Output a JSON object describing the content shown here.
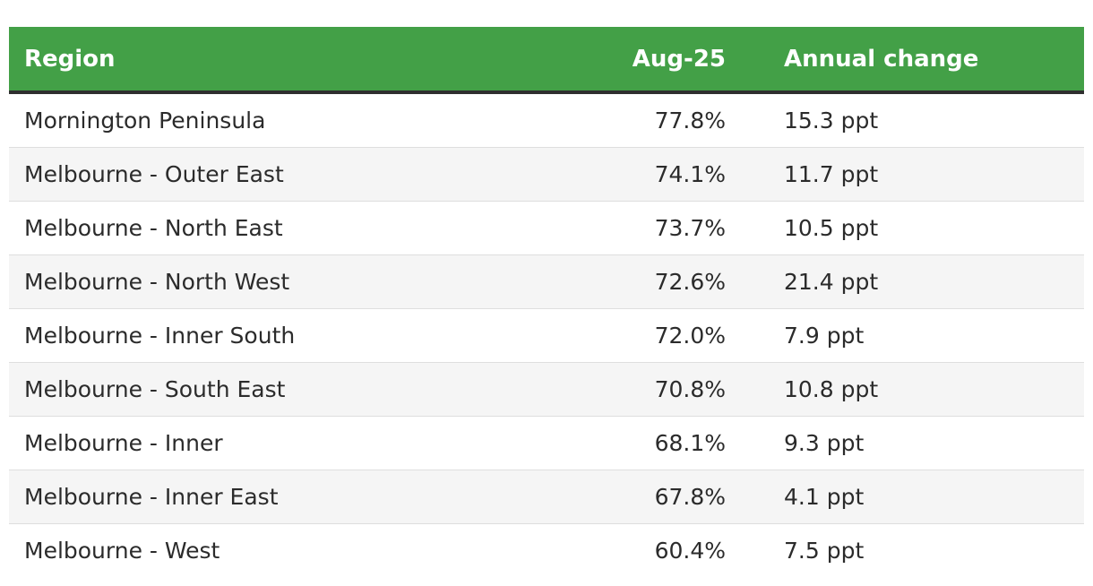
{
  "table": {
    "headers": {
      "region": "Region",
      "value": "Aug-25",
      "change": "Annual change"
    },
    "rows": [
      {
        "region": "Mornington Peninsula",
        "value": "77.8%",
        "change": "15.3 ppt"
      },
      {
        "region": "Melbourne - Outer East",
        "value": "74.1%",
        "change": "11.7 ppt"
      },
      {
        "region": "Melbourne - North East",
        "value": "73.7%",
        "change": "10.5 ppt"
      },
      {
        "region": "Melbourne - North West",
        "value": "72.6%",
        "change": "21.4 ppt"
      },
      {
        "region": "Melbourne - Inner South",
        "value": "72.0%",
        "change": "7.9 ppt"
      },
      {
        "region": "Melbourne - South East",
        "value": "70.8%",
        "change": "10.8 ppt"
      },
      {
        "region": "Melbourne - Inner",
        "value": "68.1%",
        "change": "9.3 ppt"
      },
      {
        "region": "Melbourne - Inner East",
        "value": "67.8%",
        "change": "4.1 ppt"
      },
      {
        "region": "Melbourne - West",
        "value": "60.4%",
        "change": "7.5 ppt"
      }
    ]
  },
  "colors": {
    "header_bg": "#43a047",
    "header_text": "#ffffff",
    "header_rule": "#2f2f2f",
    "row_alt_bg": "#f5f5f5"
  }
}
